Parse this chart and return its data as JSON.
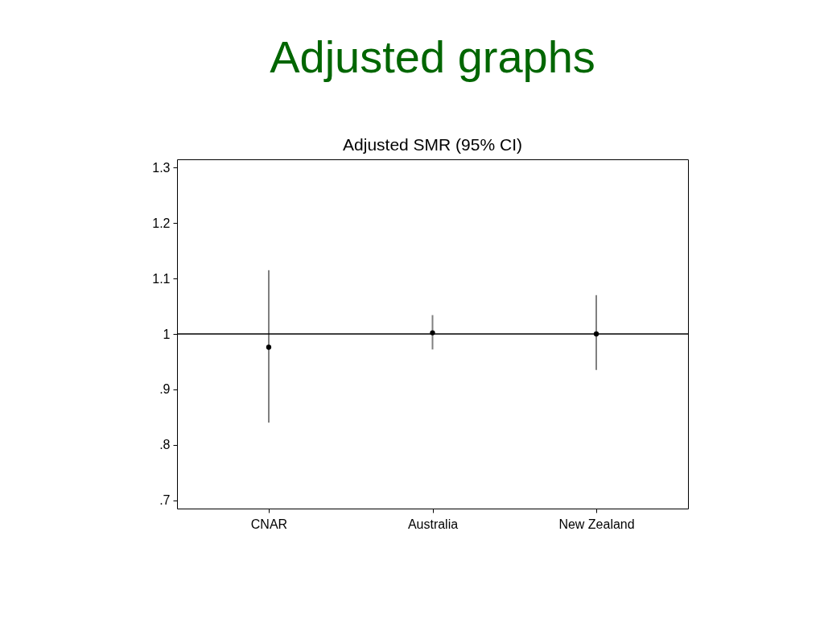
{
  "chart_data": {
    "type": "scatter",
    "title": "Adjusted graphs",
    "subtitle": "Adjusted SMR (95% CI)",
    "categories": [
      "CNAR",
      "Australia",
      "New Zealand"
    ],
    "series": [
      {
        "color": "#000000",
        "values": [
          0.976,
          1.002,
          1.0
        ],
        "errors": [
          [
            0.84,
            1.115
          ],
          [
            0.972,
            1.034
          ],
          [
            0.935,
            1.07
          ]
        ]
      }
    ],
    "ylim": [
      0.685,
      1.315
    ],
    "yticks": [
      {
        "value": 0.7,
        "label": ".7"
      },
      {
        "value": 0.8,
        "label": ".8"
      },
      {
        "value": 0.9,
        "label": ".9"
      },
      1,
      1.1,
      1.2,
      1.3
    ],
    "ref_lines": [
      {
        "axis": "y",
        "value": 1,
        "color": "#000000"
      }
    ],
    "marker": "circle",
    "grid": false
  }
}
